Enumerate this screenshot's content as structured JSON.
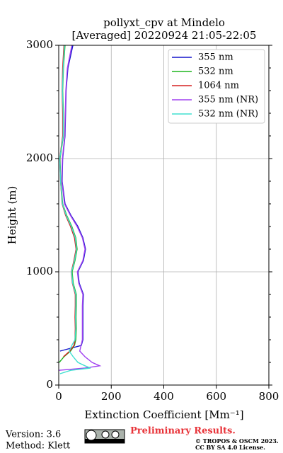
{
  "chart_data": {
    "type": "profile",
    "title": "pollyxt_cpv at Mindelo",
    "subtitle": "[Averaged] 20220924 21:05-22:05",
    "x_label": "Extinction Coefficient [Mm⁻¹]",
    "y_label": "Height (m)",
    "xlim": [
      0,
      800
    ],
    "xticks": [
      0,
      200,
      400,
      600,
      800
    ],
    "ylim": [
      0,
      3000
    ],
    "yticks": [
      0,
      1000,
      2000,
      3000
    ],
    "yminorticks": [
      200,
      400,
      600,
      800,
      1200,
      1400,
      1600,
      1800,
      2200,
      2400,
      2600,
      2800
    ],
    "grid": true,
    "legend": "upper right",
    "y": [
      3000,
      2800,
      2600,
      2400,
      2200,
      2000,
      1800,
      1600,
      1500,
      1400,
      1300,
      1200,
      1100,
      1000,
      900,
      800,
      700,
      600,
      500,
      400,
      350,
      300,
      250,
      200,
      170,
      150,
      130,
      100
    ],
    "series": [
      {
        "name": "355 nm",
        "color": "#1414cc",
        "values": [
          54,
          35,
          28,
          26,
          24,
          15,
          13,
          24,
          46,
          73,
          92,
          102,
          94,
          73,
          78,
          94,
          92,
          92,
          92,
          92,
          86,
          5,
          null,
          null,
          null,
          null,
          null,
          null
        ]
      },
      {
        "name": "532 nm",
        "color": "#1fb51f",
        "values": [
          24,
          18,
          15,
          18,
          18,
          5,
          8,
          15,
          30,
          50,
          65,
          70,
          62,
          51,
          55,
          67,
          67,
          66,
          67,
          65,
          60,
          45,
          20,
          2,
          null,
          null,
          null,
          null
        ]
      },
      {
        "name": "1064 nm",
        "color": "#d62020",
        "values": [
          20,
          15,
          13,
          15,
          15,
          4,
          7,
          13,
          26,
          45,
          60,
          66,
          58,
          48,
          52,
          63,
          63,
          62,
          63,
          62,
          58,
          42,
          18,
          null,
          null,
          null,
          null,
          null
        ]
      },
      {
        "name": "355 nm (NR)",
        "color": "#a040f0",
        "values": [
          50,
          33,
          27,
          25,
          23,
          14,
          12,
          22,
          44,
          70,
          90,
          100,
          92,
          71,
          76,
          92,
          90,
          90,
          90,
          90,
          85,
          80,
          100,
          127,
          156,
          100,
          0,
          null
        ]
      },
      {
        "name": "532 nm (NR)",
        "color": "#40e0d0",
        "values": [
          22,
          17,
          14,
          17,
          17,
          4,
          7,
          14,
          28,
          48,
          63,
          68,
          60,
          49,
          53,
          65,
          65,
          64,
          65,
          62,
          50,
          40,
          55,
          73,
          100,
          121,
          46,
          5
        ]
      }
    ]
  },
  "footer": {
    "version": "Version: 3.6",
    "method": "Method: Klett",
    "notice": "Preliminary Results.",
    "copyright": "© TROPOS & OSCM 2023.",
    "license": "CC BY SA 4.0 License."
  }
}
